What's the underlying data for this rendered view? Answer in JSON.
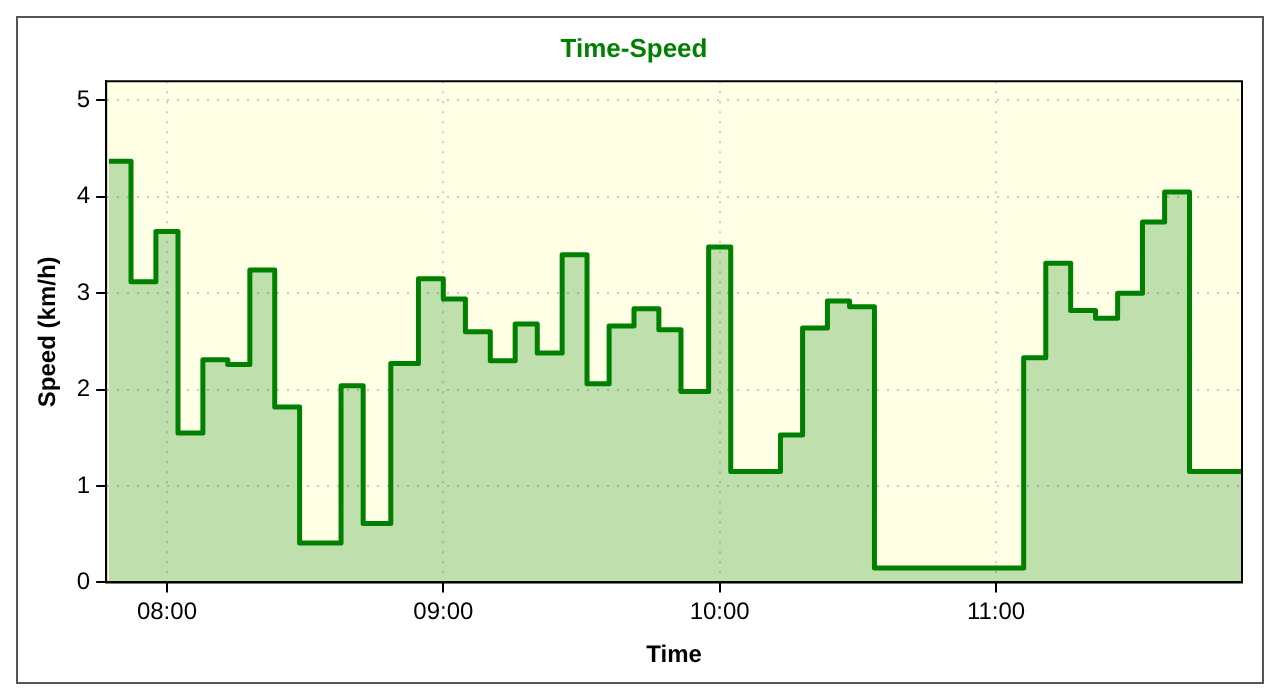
{
  "chart_data": {
    "type": "area",
    "title": "Time-Speed",
    "xlabel": "Time",
    "ylabel": "Speed (km/h)",
    "x": [
      7.79,
      7.87,
      7.87,
      7.96,
      7.96,
      8.04,
      8.04,
      8.13,
      8.13,
      8.22,
      8.22,
      8.3,
      8.3,
      8.39,
      8.39,
      8.48,
      8.48,
      8.63,
      8.63,
      8.71,
      8.71,
      8.81,
      8.81,
      8.91,
      8.91,
      9.0,
      9.0,
      9.08,
      9.08,
      9.17,
      9.17,
      9.26,
      9.26,
      9.34,
      9.34,
      9.43,
      9.43,
      9.52,
      9.52,
      9.6,
      9.6,
      9.69,
      9.69,
      9.78,
      9.78,
      9.86,
      9.86,
      9.96,
      9.96,
      10.04,
      10.04,
      10.22,
      10.22,
      10.3,
      10.3,
      10.39,
      10.39,
      10.47,
      10.47,
      10.56,
      10.56,
      11.1,
      11.1,
      11.18,
      11.18,
      11.27,
      11.27,
      11.36,
      11.36,
      11.44,
      11.44,
      11.53,
      11.53,
      11.61,
      11.61,
      11.7,
      11.7,
      11.89
    ],
    "series": [
      {
        "color": "#008000",
        "values": [
          4.37,
          4.37,
          3.12,
          3.12,
          3.64,
          3.64,
          1.55,
          1.55,
          2.31,
          2.31,
          2.26,
          2.26,
          3.24,
          3.24,
          1.82,
          1.82,
          0.41,
          0.41,
          2.04,
          2.04,
          0.61,
          0.61,
          2.27,
          2.27,
          3.15,
          3.15,
          2.94,
          2.94,
          2.6,
          2.6,
          2.3,
          2.3,
          2.68,
          2.68,
          2.38,
          2.38,
          3.4,
          3.4,
          2.06,
          2.06,
          2.66,
          2.66,
          2.84,
          2.84,
          2.62,
          2.62,
          1.98,
          1.98,
          3.48,
          3.48,
          1.15,
          1.15,
          1.53,
          1.53,
          2.64,
          2.64,
          2.92,
          2.92,
          2.86,
          2.86,
          0.15,
          0.15,
          2.33,
          2.33,
          3.31,
          3.31,
          2.82,
          2.82,
          2.74,
          2.74,
          3.0,
          3.0,
          3.74,
          3.74,
          4.05,
          4.05,
          1.15,
          1.15
        ]
      }
    ],
    "xlim": [
      7.78,
      11.89
    ],
    "ylim": [
      0,
      5.2
    ],
    "xticks": [
      {
        "value": 8,
        "label": "08:00"
      },
      {
        "value": 9,
        "label": "09:00"
      },
      {
        "value": 10,
        "label": "10:00"
      },
      {
        "value": 11,
        "label": "11:00"
      }
    ],
    "yticks": [
      0,
      1,
      2,
      3,
      4,
      5
    ],
    "grid": true,
    "legend": false,
    "marker": "none",
    "line_style": "solid"
  }
}
